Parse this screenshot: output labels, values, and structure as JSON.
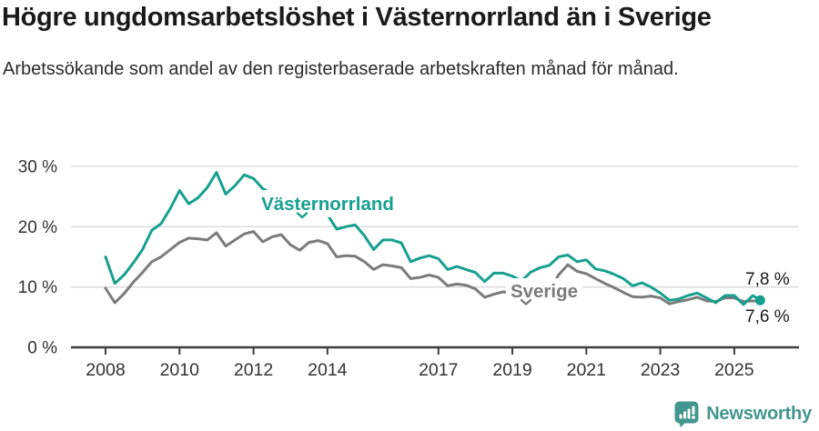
{
  "header": {
    "title": "Högre ungdomsarbetslöshet i Västernorrland än i Sverige",
    "subtitle": "Arbetssökande som andel av den registerbaserade arbetskraften månad för månad."
  },
  "chart_data": {
    "type": "line",
    "title": "Högre ungdomsarbetslöshet i Västernorrland än i Sverige",
    "subtitle": "Arbetssökande som andel av den registerbaserade arbetskraften månad för månad.",
    "x_unit": "decimal_year",
    "xlim": [
      2007.55,
      2026.3
    ],
    "ylim": [
      0,
      30
    ],
    "grid": "horizontal",
    "y_tick_values": [
      0,
      10,
      20,
      30
    ],
    "y_tick_labels": [
      "0 %",
      "10 %",
      "20 %",
      "30 %"
    ],
    "x_tick_values": [
      2008,
      2010,
      2012,
      2014,
      2017,
      2019,
      2021,
      2023,
      2025
    ],
    "x_tick_labels": [
      "2008",
      "2010",
      "2012",
      "2014",
      "2017",
      "2019",
      "2021",
      "2023",
      "2025"
    ],
    "x": [
      2008,
      2008.25,
      2008.5,
      2008.75,
      2009,
      2009.25,
      2009.5,
      2009.75,
      2010,
      2010.25,
      2010.5,
      2010.75,
      2011,
      2011.25,
      2011.5,
      2011.75,
      2012,
      2012.25,
      2012.5,
      2012.75,
      2013,
      2013.25,
      2013.5,
      2013.75,
      2014,
      2014.25,
      2014.5,
      2014.75,
      2015,
      2015.25,
      2015.5,
      2015.75,
      2016,
      2016.25,
      2016.5,
      2016.75,
      2017,
      2017.25,
      2017.5,
      2017.75,
      2018,
      2018.25,
      2018.5,
      2018.75,
      2019,
      2019.25,
      2019.5,
      2019.75,
      2020,
      2020.25,
      2020.5,
      2020.75,
      2021,
      2021.25,
      2021.5,
      2021.75,
      2022,
      2022.25,
      2022.5,
      2022.75,
      2023,
      2023.25,
      2023.5,
      2023.75,
      2024,
      2024.25,
      2024.5,
      2024.75,
      2025,
      2025.25,
      2025.5,
      2025.7
    ],
    "series": [
      {
        "name": "Västernorrland",
        "color": "#17A08F",
        "end_label": "7,8 %",
        "end_dot": true,
        "values": [
          15.0,
          10.6,
          12.0,
          14.0,
          16.2,
          19.4,
          20.5,
          23.0,
          26.0,
          23.8,
          24.8,
          26.5,
          29.0,
          25.4,
          26.8,
          28.6,
          28.0,
          26.3,
          25.5,
          25.0,
          24.5,
          23.8,
          23.5,
          23.0,
          22.0,
          19.6,
          20.0,
          20.3,
          18.5,
          16.2,
          17.8,
          17.8,
          17.3,
          14.2,
          14.8,
          15.2,
          14.7,
          12.9,
          13.4,
          12.9,
          12.4,
          10.9,
          12.3,
          12.3,
          11.8,
          11.0,
          12.5,
          13.2,
          13.6,
          15.0,
          15.3,
          14.2,
          14.5,
          13.0,
          12.7,
          12.1,
          11.4,
          10.2,
          10.7,
          10.0,
          9.0,
          7.8,
          8.0,
          8.6,
          9.0,
          8.2,
          7.4,
          8.6,
          8.6,
          7.1,
          8.6,
          7.8
        ]
      },
      {
        "name": "Sverige",
        "color": "#7b7b7b",
        "end_label": "7,6 %",
        "end_dot": false,
        "values": [
          9.8,
          7.4,
          8.9,
          10.8,
          12.4,
          14.2,
          15.0,
          16.2,
          17.4,
          18.1,
          18.0,
          17.8,
          19.0,
          16.8,
          17.8,
          18.8,
          19.2,
          17.5,
          18.3,
          18.7,
          17.0,
          16.1,
          17.4,
          17.7,
          17.2,
          15.0,
          15.2,
          15.1,
          14.2,
          12.9,
          13.7,
          13.5,
          13.2,
          11.4,
          11.6,
          12.0,
          11.6,
          10.2,
          10.5,
          10.3,
          9.7,
          8.3,
          8.8,
          9.2,
          9.0,
          8.3,
          8.8,
          9.0,
          9.3,
          12.0,
          13.7,
          12.6,
          12.2,
          11.4,
          10.6,
          9.9,
          9.1,
          8.4,
          8.3,
          8.5,
          8.2,
          7.2,
          7.6,
          7.9,
          8.3,
          7.7,
          7.6,
          8.2,
          8.2,
          7.6,
          7.7,
          7.6
        ]
      }
    ],
    "legend_position": "inline-labels"
  },
  "colors": {
    "accent_teal": "#17A08F",
    "series_gray": "#7b7b7b",
    "axis": "#3d3d3d",
    "gridline": "#d9d9d9",
    "text_dark": "#1a1a1a",
    "logo_teal": "#42968E"
  },
  "footer": {
    "brand": "Newsworthy"
  }
}
